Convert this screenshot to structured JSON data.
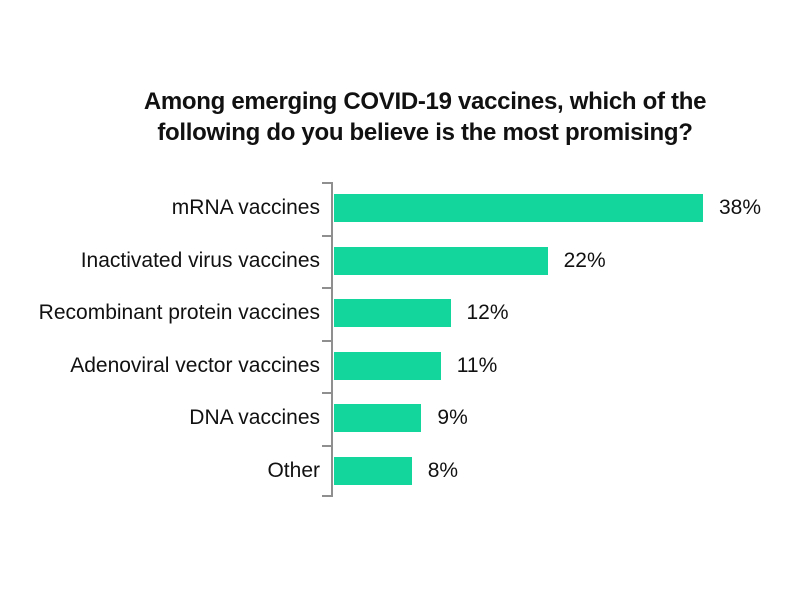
{
  "chart_data": {
    "type": "bar",
    "orientation": "horizontal",
    "title": "Among emerging COVID-19 vaccines, which of the following do you believe is the most promising?",
    "title_lines": [
      "Among emerging COVID-19 vaccines, which of the",
      "following do you believe is the most promising?"
    ],
    "categories": [
      "mRNA vaccines",
      "Inactivated virus vaccines",
      "Recombinant protein vaccines",
      "Adenoviral vector vaccines",
      "DNA vaccines",
      "Other"
    ],
    "values": [
      38,
      22,
      12,
      11,
      9,
      8
    ],
    "value_labels": [
      "38%",
      "22%",
      "12%",
      "11%",
      "9%",
      "8%"
    ],
    "xlabel": "",
    "ylabel": "",
    "xlim": [
      0,
      46
    ],
    "grid": false,
    "legend": "none",
    "bar_color": "#12d69c",
    "axis_color": "#8f8f8f",
    "text_color": "#111111",
    "background_color": "#ffffff"
  }
}
